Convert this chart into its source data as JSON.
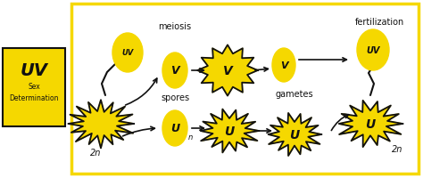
{
  "bg_color": "#ffffff",
  "border_color": "#f5d800",
  "yellow": "#f5d800",
  "black": "#111111",
  "left_box_text1": "UV",
  "left_box_text2": "Sex\nDetermination",
  "label_meiosis": "meiosis",
  "label_spores": "spores",
  "label_gametes": "gametes",
  "label_fertilization": "fertilization",
  "label_2n_left": "2n",
  "label_n": "n",
  "label_2n_right": "2n",
  "label_V": "V",
  "label_U": "U",
  "label_UV": "UV",
  "figw": 4.74,
  "figh": 2.01,
  "dpi": 100
}
